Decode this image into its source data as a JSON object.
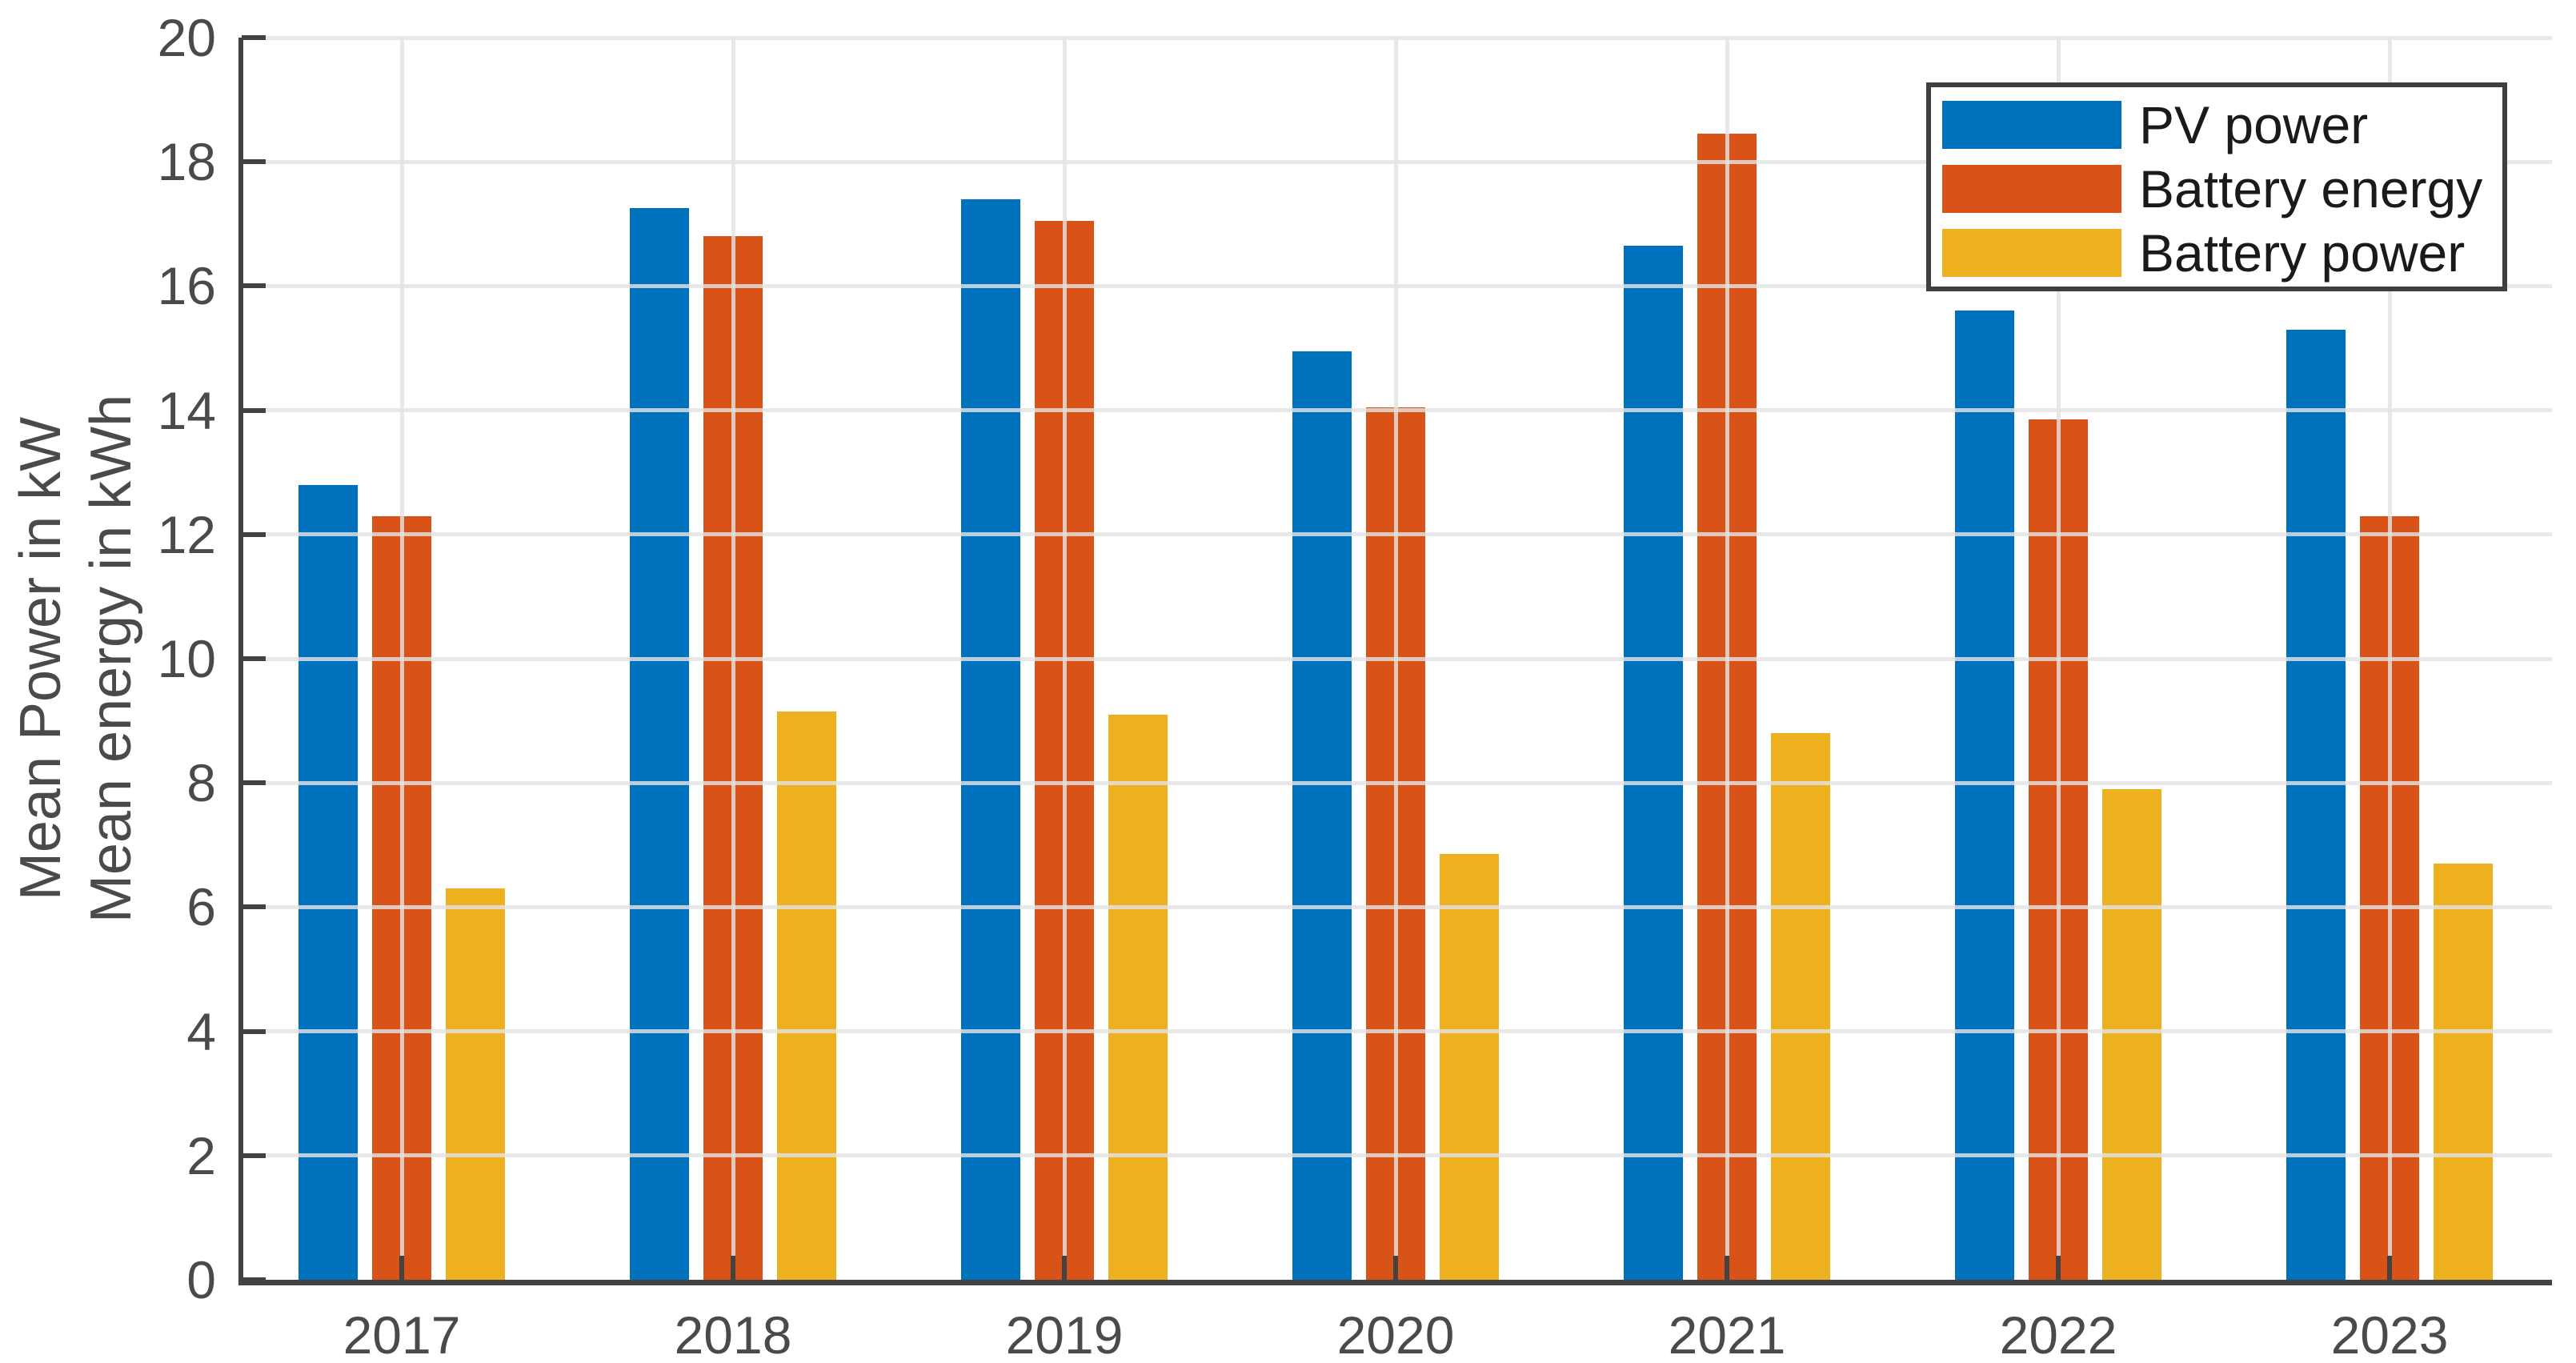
{
  "chart_data": {
    "type": "bar",
    "title": "",
    "categories": [
      "2017",
      "2018",
      "2019",
      "2020",
      "2021",
      "2022",
      "2023"
    ],
    "series": [
      {
        "name": "PV power",
        "color": "#0072BD",
        "values": [
          12.8,
          17.25,
          17.4,
          14.95,
          16.65,
          15.6,
          15.3
        ]
      },
      {
        "name": "Battery energy",
        "color": "#D95319",
        "values": [
          12.3,
          16.8,
          17.05,
          14.05,
          18.45,
          13.85,
          12.3
        ]
      },
      {
        "name": "Battery power",
        "color": "#EDB120",
        "values": [
          6.3,
          9.15,
          9.1,
          6.85,
          8.8,
          7.9,
          6.7
        ]
      }
    ],
    "xlabel": "",
    "ylabel_line1": "Mean Power in kW",
    "ylabel_line2": "Mean energy in kWh",
    "ylim": [
      0,
      20
    ],
    "ytick_step": 2,
    "yticks": [
      "0",
      "2",
      "4",
      "6",
      "8",
      "10",
      "12",
      "14",
      "16",
      "18",
      "20"
    ],
    "grid": true,
    "grid_layer": "top",
    "legend_position": "northeast",
    "colors": {
      "axis": "#424242",
      "tick_text": "#4a4a4a",
      "grid": "#e3e3e3",
      "legend_border": "#3f3f3f",
      "legend_text": "#1a1a1a",
      "background": "#ffffff"
    }
  }
}
